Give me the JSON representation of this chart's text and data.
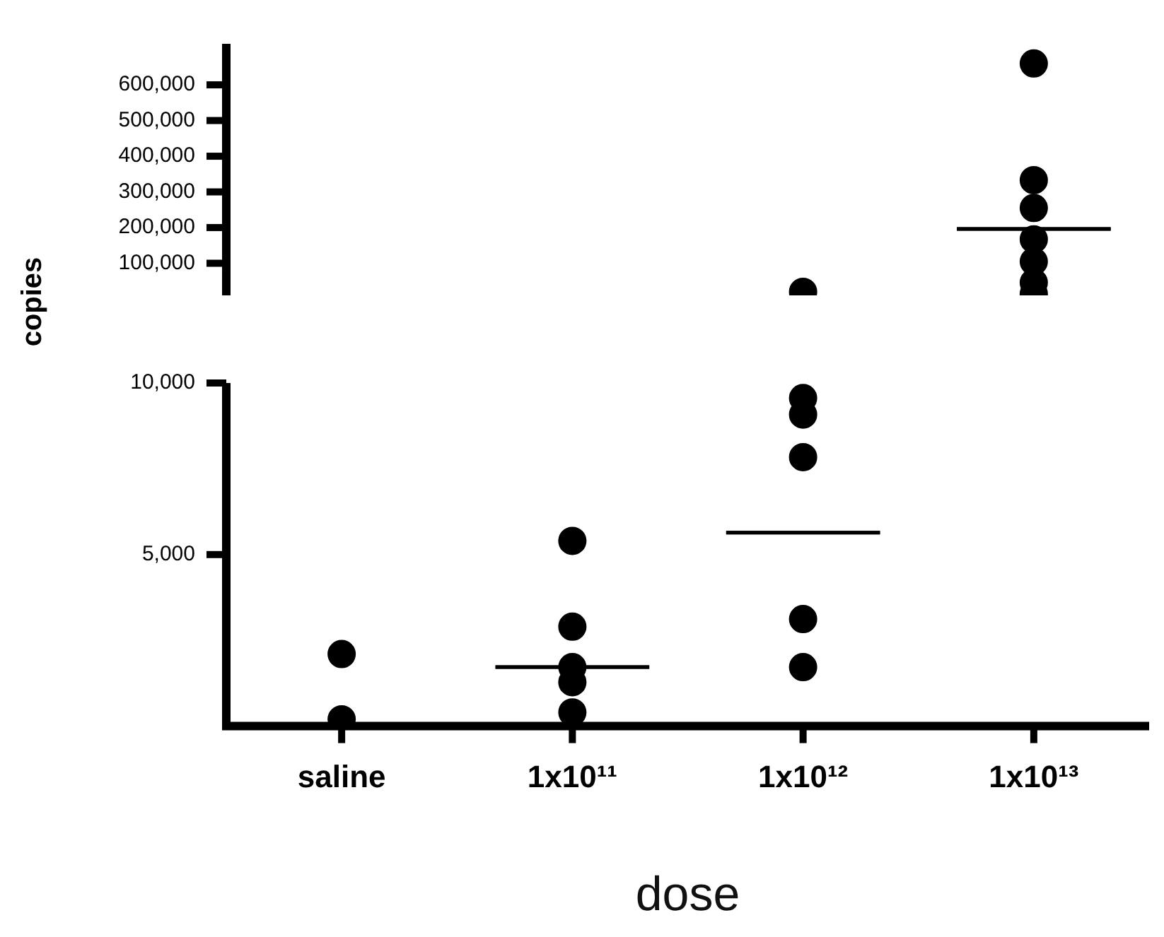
{
  "chart_data": [
    {
      "type": "scatter",
      "ylabel": "copies",
      "categories": [
        "saline",
        "1x10¹¹",
        "1x10¹²",
        "1x10¹³"
      ],
      "tick_labels": "y",
      "marker": "circle",
      "ylim": [
        10000,
        715000
      ],
      "yticks": [
        {
          "value": 100000,
          "label": "100,000"
        },
        {
          "value": 200000,
          "label": "200,000"
        },
        {
          "value": 300000,
          "label": "300,000"
        },
        {
          "value": 400000,
          "label": "400,000"
        },
        {
          "value": 500000,
          "label": "500,000"
        },
        {
          "value": 600000,
          "label": "600,000"
        }
      ],
      "series": [
        {
          "color": "#000000",
          "x": [
            "1x10¹²",
            "1x10¹³",
            "1x10¹³",
            "1x10¹³",
            "1x10¹³",
            "1x10¹³",
            "1x10¹³",
            "1x10¹³"
          ],
          "values": [
            20000,
            660000,
            333000,
            255000,
            167000,
            105000,
            46000,
            14000
          ]
        },
        {
          "type": "box",
          "color": "#000000",
          "boxes": [
            null,
            null,
            null,
            {
              "low": 196000,
              "q1": 196000,
              "median": 196000,
              "q3": 196000,
              "high": 196000
            }
          ]
        }
      ]
    },
    {
      "type": "scatter",
      "xlabel": "dose",
      "categories": [
        "saline",
        "1x10¹¹",
        "1x10¹²",
        "1x10¹³"
      ],
      "marker": "circle",
      "ylim": [
        0,
        10000
      ],
      "yticks": [
        {
          "value": 5000,
          "label": "5,000"
        },
        {
          "value": 10000,
          "label": "10,000"
        }
      ],
      "series": [
        {
          "color": "#000000",
          "x": [
            "saline",
            "saline",
            "1x10¹¹",
            "1x10¹¹",
            "1x10¹¹",
            "1x10¹¹",
            "1x10¹¹",
            "1x10¹²",
            "1x10¹²",
            "1x10¹²",
            "1x10¹²",
            "1x10¹²"
          ],
          "values": [
            200,
            2100,
            5400,
            2900,
            1720,
            1280,
            400,
            9560,
            9080,
            7840,
            3120,
            1720
          ]
        },
        {
          "type": "box",
          "color": "#000000",
          "boxes": [
            null,
            {
              "low": 1720,
              "q1": 1720,
              "median": 1720,
              "q3": 1720,
              "high": 1720
            },
            {
              "low": 5640,
              "q1": 5640,
              "median": 5640,
              "q3": 5640,
              "high": 5640
            },
            null
          ]
        }
      ]
    }
  ]
}
